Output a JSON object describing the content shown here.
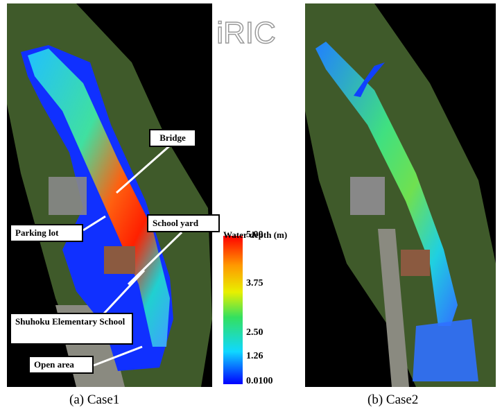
{
  "logo": "iRIC",
  "panels": [
    {
      "caption": "(a)  Case1",
      "annotations": [
        "Bridge",
        "Parking lot",
        "School yard",
        "Shuhoku Elementary School",
        "Open area"
      ]
    },
    {
      "caption": "(b) Case2"
    }
  ],
  "colorbar": {
    "title": "Water depth (m)",
    "ticks": [
      "5.00",
      "3.75",
      "2.50",
      "1.26",
      "0.0100"
    ]
  }
}
